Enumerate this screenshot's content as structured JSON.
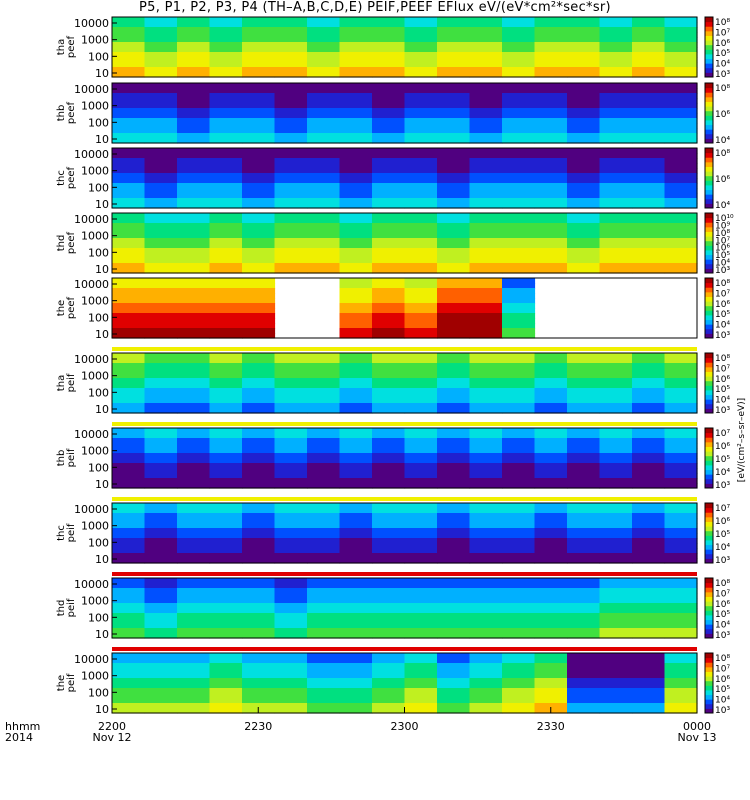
{
  "title": "P5, P1, P2, P3, P4 (TH–A,B,C,D,E) PEIF,PEEF EFlux eV/(eV*cm²*sec*sr)",
  "colorbar_unit": "[eV/(cm²–s–sr–eV)]",
  "time_axis": {
    "row_labels": [
      "hhmm",
      "2014"
    ],
    "ticks": [
      {
        "label": "2200",
        "sub": "Nov 12"
      },
      {
        "label": "2230",
        "sub": ""
      },
      {
        "label": "2300",
        "sub": ""
      },
      {
        "label": "2330",
        "sub": ""
      },
      {
        "label": "0000",
        "sub": "Nov 13"
      }
    ]
  },
  "colors": {
    "scale": [
      "#500080",
      "#2020d0",
      "#0050ff",
      "#00b0ff",
      "#00e0e0",
      "#00e080",
      "#40e040",
      "#c0f020",
      "#f0f000",
      "#ffb000",
      "#ff6000",
      "#e00000",
      "#a00000"
    ]
  },
  "chart_data": {
    "type": "heatmap",
    "x_range": [
      "2200",
      "0000"
    ],
    "y_scale": "log",
    "energy_ticks": [
      "10000",
      "1000",
      "100",
      "10"
    ],
    "panels": [
      {
        "probe": "tha",
        "product": "peef",
        "top_tick": "10000",
        "cb_ticks": [
          "10⁸",
          "10⁷",
          "10⁶",
          "10⁵",
          "10⁴",
          "10³"
        ],
        "cols": [
          7,
          6,
          7,
          6,
          7,
          7,
          6,
          7,
          7,
          6,
          7,
          7,
          6,
          7,
          7,
          6,
          7,
          6
        ],
        "gap_from": 17,
        "strips": []
      },
      {
        "probe": "thb",
        "product": "peef",
        "top_tick": "10000",
        "cb_ticks": [
          "10⁸",
          "10⁶",
          "10⁴"
        ],
        "cols": [
          2,
          2,
          1,
          2,
          2,
          1,
          2,
          2,
          1,
          2,
          2,
          1,
          2,
          2,
          1,
          2,
          2,
          2
        ],
        "gap_from": 18,
        "strips": []
      },
      {
        "probe": "thc",
        "product": "peef",
        "top_tick": "10000",
        "cb_ticks": [
          "10⁸",
          "10⁶",
          "10⁴"
        ],
        "cols": [
          2,
          1,
          2,
          2,
          1,
          2,
          2,
          1,
          2,
          2,
          1,
          2,
          2,
          2,
          1,
          2,
          2,
          1
        ],
        "gap_from": 19,
        "strips": []
      },
      {
        "probe": "thd",
        "product": "peef",
        "top_tick": "10000",
        "cb_ticks": [
          "10¹⁰",
          "10⁹",
          "10⁸",
          "10⁷",
          "10⁶",
          "10⁵",
          "10⁴",
          "10³"
        ],
        "cols": [
          7,
          6,
          6,
          7,
          6,
          7,
          7,
          6,
          7,
          7,
          6,
          7,
          7,
          7,
          6,
          7,
          7,
          7
        ],
        "gap_from": 19,
        "strips": []
      },
      {
        "probe": "the",
        "product": "peef",
        "top_tick": "10000",
        "cb_ticks": [
          "10⁸",
          "10⁷",
          "10⁶",
          "10⁵",
          "10⁴",
          "10³"
        ],
        "cols": [
          10,
          10,
          10,
          10,
          10,
          null,
          null,
          9,
          10,
          9,
          11,
          11,
          4,
          null,
          null,
          null,
          null,
          null
        ],
        "gap_from": 19,
        "strips": []
      },
      {
        "probe": "tha",
        "product": "peif",
        "top_tick": "10000",
        "cb_ticks": [
          "10⁸",
          "10⁷",
          "10⁶",
          "10⁵",
          "10⁴",
          "10³"
        ],
        "cols": [
          5,
          4,
          4,
          5,
          4,
          5,
          5,
          4,
          5,
          5,
          4,
          5,
          5,
          4,
          5,
          5,
          4,
          5
        ],
        "gap_from": 17,
        "strips": [
          {
            "pos": "top",
            "color": "#f0f000"
          }
        ]
      },
      {
        "probe": "thb",
        "product": "peif",
        "top_tick": "10000",
        "cb_ticks": [
          "10⁷",
          "10⁶",
          "10⁵",
          "10⁴",
          "10³"
        ],
        "cols": [
          1,
          2,
          1,
          2,
          1,
          2,
          1,
          2,
          1,
          2,
          1,
          2,
          1,
          2,
          1,
          2,
          1,
          2
        ],
        "gap_from": 18,
        "strips": [
          {
            "pos": "top",
            "color": "#f0f000"
          }
        ]
      },
      {
        "probe": "thc",
        "product": "peif",
        "top_tick": "10000",
        "cb_ticks": [
          "10⁷",
          "10⁶",
          "10⁵",
          "10⁴",
          "10³"
        ],
        "cols": [
          2,
          1,
          2,
          2,
          1,
          2,
          2,
          1,
          2,
          2,
          1,
          2,
          2,
          1,
          2,
          2,
          1,
          2
        ],
        "gap_from": 19,
        "strips": [
          {
            "pos": "top",
            "color": "#f0f000"
          }
        ]
      },
      {
        "probe": "thd",
        "product": "peif",
        "top_tick": "10000",
        "cb_ticks": [
          "10⁸",
          "10⁷",
          "10⁶",
          "10⁵",
          "10⁴",
          "10³"
        ],
        "cols": [
          4,
          3,
          4,
          4,
          4,
          3,
          4,
          4,
          4,
          4,
          4,
          4,
          4,
          4,
          4,
          5,
          5,
          5
        ],
        "gap_from": 19,
        "strips": [
          {
            "pos": "top",
            "color": "#e00000"
          }
        ]
      },
      {
        "probe": "the",
        "product": "peif",
        "top_tick": "10000",
        "cb_ticks": [
          "10⁸",
          "10⁷",
          "10⁶",
          "10⁵",
          "10⁴",
          "10³"
        ],
        "cols": [
          5,
          5,
          5,
          6,
          5,
          5,
          4,
          4,
          5,
          6,
          4,
          5,
          6,
          7,
          1,
          1,
          1,
          6
        ],
        "gap_from": 19,
        "strips": [
          {
            "pos": "top",
            "color": "#e00000"
          }
        ]
      }
    ]
  }
}
